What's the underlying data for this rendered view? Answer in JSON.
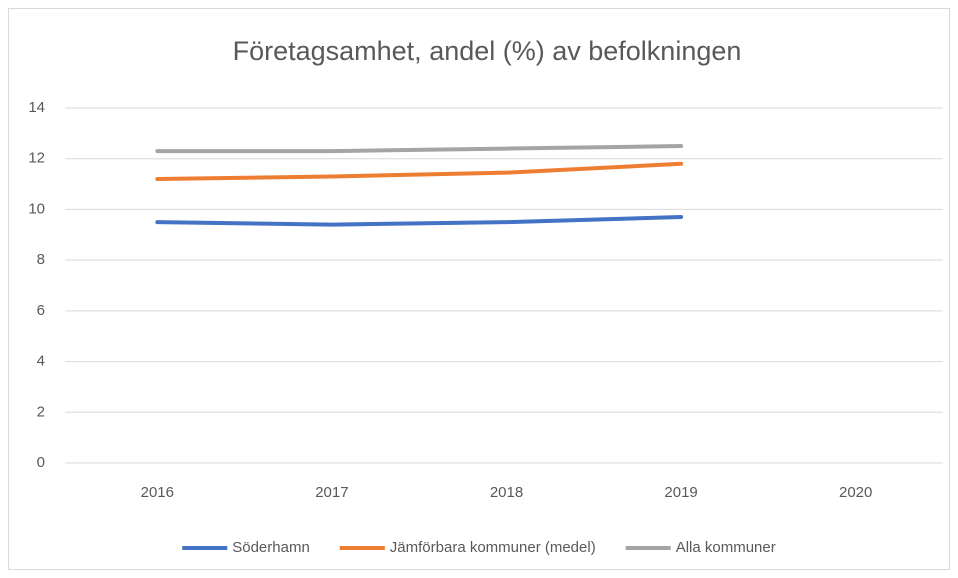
{
  "chart_data": {
    "type": "line",
    "title": "Företagsamhet, andel (%) av befolkningen",
    "categories": [
      "2016",
      "2017",
      "2018",
      "2019",
      "2020"
    ],
    "series": [
      {
        "name": "Söderhamn",
        "color": "#4472c4",
        "values": [
          9.5,
          9.4,
          9.5,
          9.7,
          null
        ]
      },
      {
        "name": "Jämförbara kommuner (medel)",
        "color": "#ed7d31",
        "values": [
          11.2,
          11.3,
          11.45,
          11.8,
          null
        ]
      },
      {
        "name": "Alla kommuner",
        "color": "#a5a5a5",
        "values": [
          12.3,
          12.3,
          12.4,
          12.5,
          null
        ]
      }
    ],
    "ylim": [
      0,
      14
    ],
    "yticks": [
      0,
      2,
      4,
      6,
      8,
      10,
      12,
      14
    ],
    "grid": true,
    "legend": "bottom"
  }
}
